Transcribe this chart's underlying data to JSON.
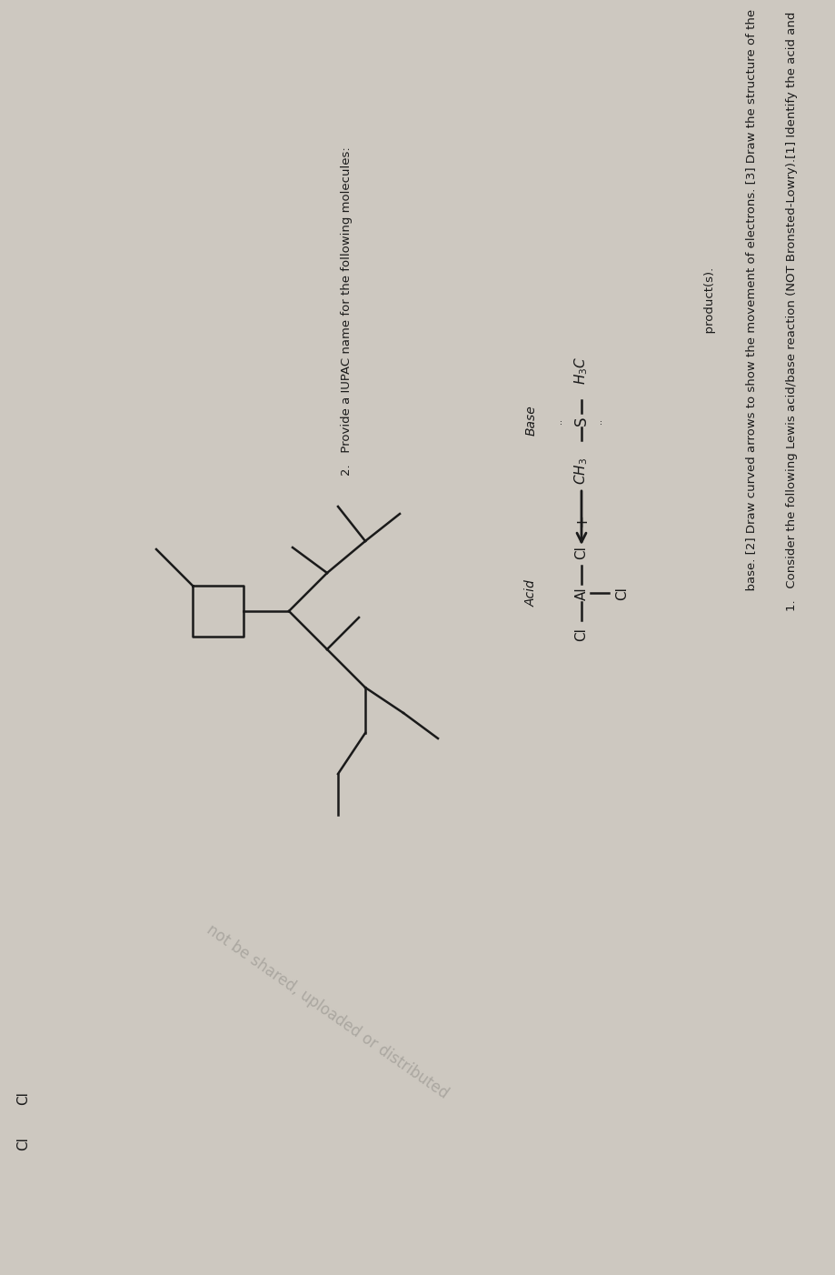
{
  "bg_color": "#cdc8c0",
  "text_color": "#1a1a1a",
  "q1_line1": "1.   Consider the following Lewis acid/base reaction (NOT Bronsted-Lowry).[1] Identify the acid and",
  "q1_line2": "      base. [2] Draw curved arrows to show the movement of electrons. [3] Draw the structure of the",
  "q1_line3": "      product(s).",
  "q2_line": "2.   Provide a IUPAC name for the following molecules:",
  "watermark": "not be shared, uploaded or distributed",
  "lw": 1.8
}
